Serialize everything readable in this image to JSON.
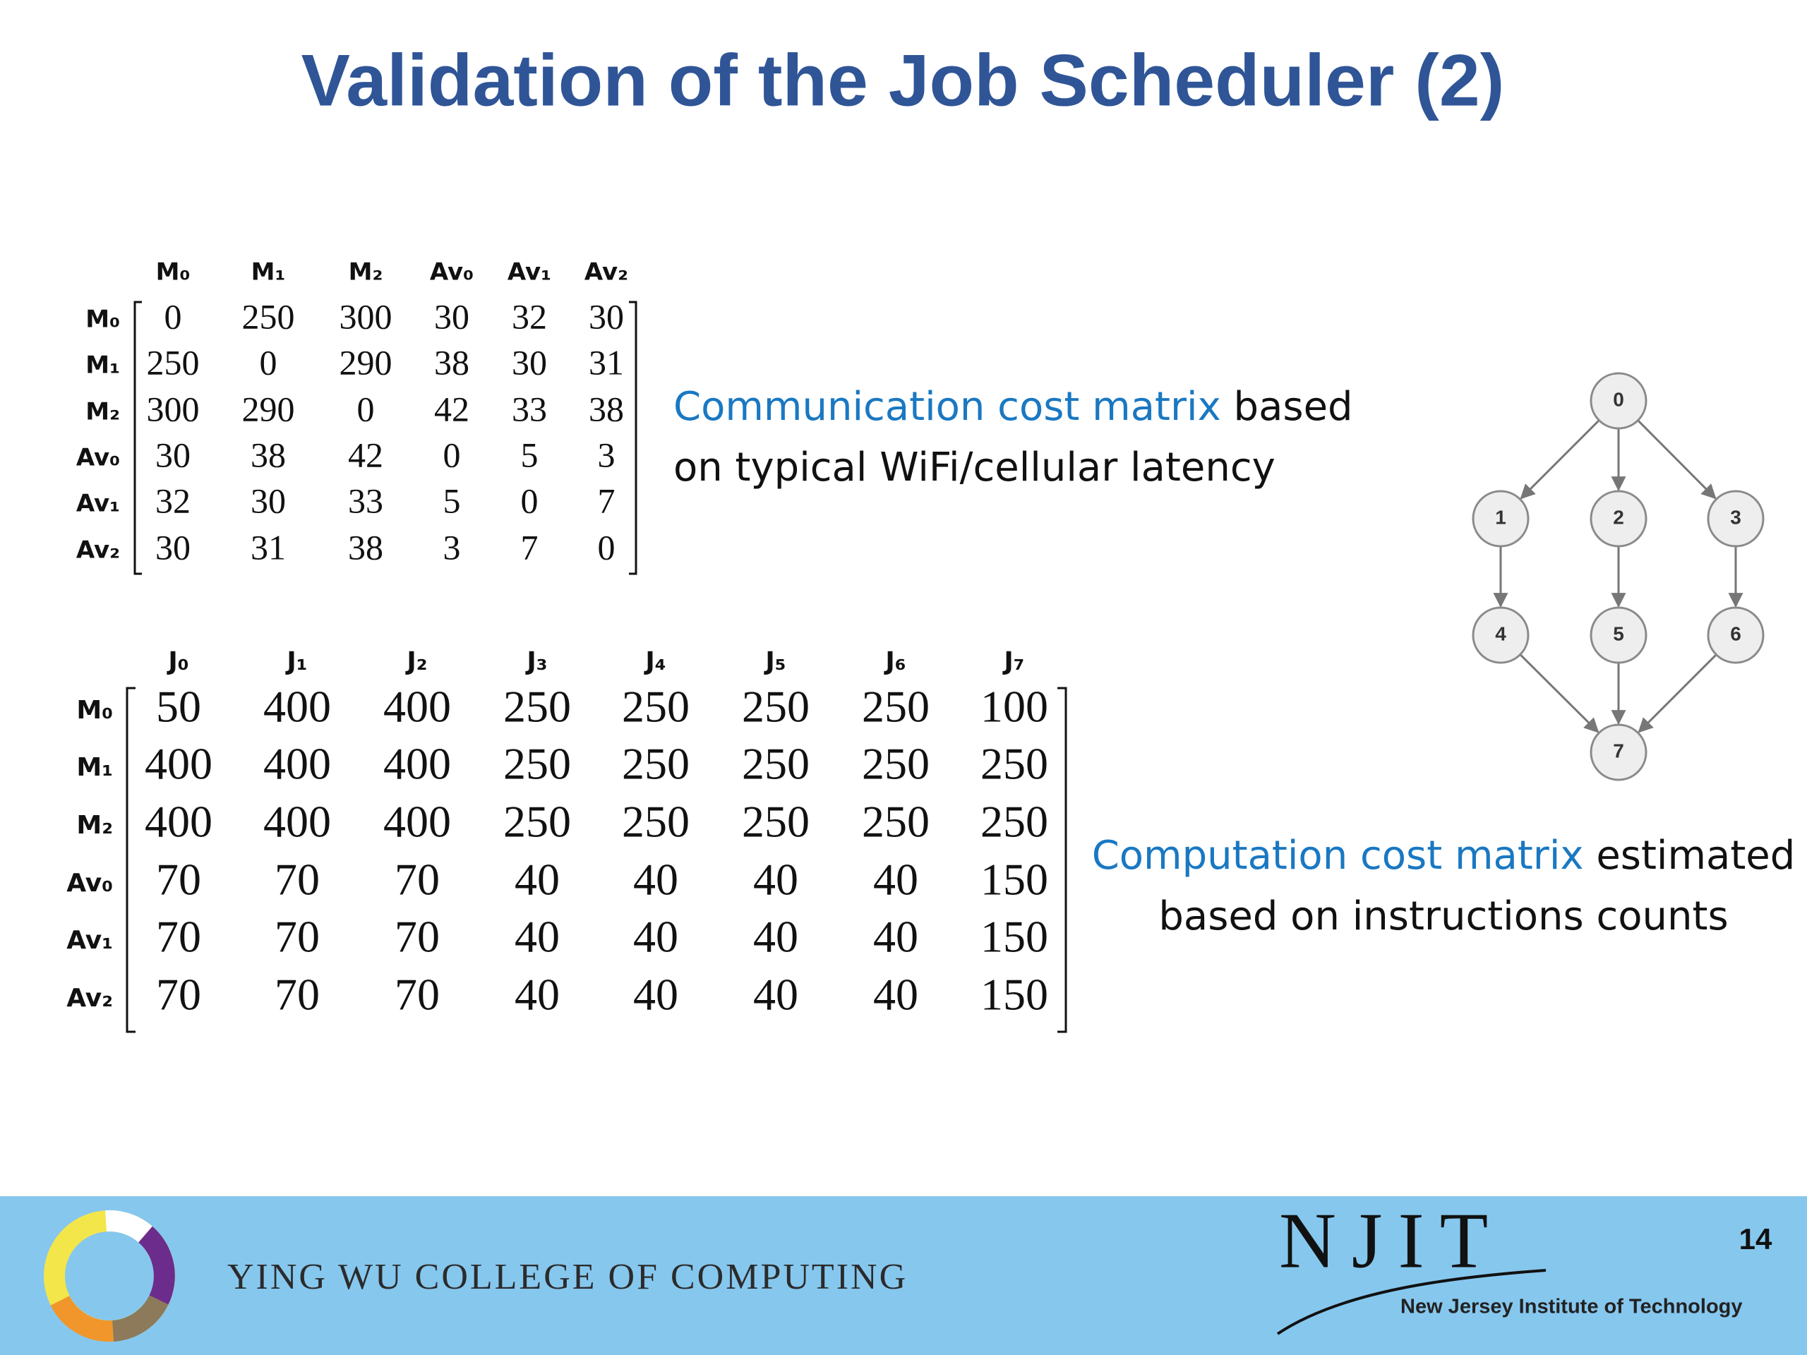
{
  "title": "Validation of the Job Scheduler (2)",
  "communication_matrix": {
    "columns": [
      "M₀",
      "M₁",
      "M₂",
      "Av₀",
      "Av₁",
      "Av₂"
    ],
    "rows": [
      {
        "label": "M₀",
        "values": [
          0,
          250,
          300,
          30,
          32,
          30
        ]
      },
      {
        "label": "M₁",
        "values": [
          250,
          0,
          290,
          38,
          30,
          31
        ]
      },
      {
        "label": "M₂",
        "values": [
          300,
          290,
          0,
          42,
          33,
          38
        ]
      },
      {
        "label": "Av₀",
        "values": [
          30,
          38,
          42,
          0,
          5,
          3
        ]
      },
      {
        "label": "Av₁",
        "values": [
          32,
          30,
          33,
          5,
          0,
          7
        ]
      },
      {
        "label": "Av₂",
        "values": [
          30,
          31,
          38,
          3,
          7,
          0
        ]
      }
    ]
  },
  "communication_caption": {
    "highlight": "Communication cost matrix",
    "rest": "based",
    "line2": "on typical WiFi/cellular latency"
  },
  "computation_matrix": {
    "columns": [
      "J₀",
      "J₁",
      "J₂",
      "J₃",
      "J₄",
      "J₅",
      "J₆",
      "J₇"
    ],
    "rows": [
      {
        "label": "M₀",
        "values": [
          50,
          400,
          400,
          250,
          250,
          250,
          250,
          100
        ]
      },
      {
        "label": "M₁",
        "values": [
          400,
          400,
          400,
          250,
          250,
          250,
          250,
          250
        ]
      },
      {
        "label": "M₂",
        "values": [
          400,
          400,
          400,
          250,
          250,
          250,
          250,
          250
        ]
      },
      {
        "label": "Av₀",
        "values": [
          70,
          70,
          70,
          40,
          40,
          40,
          40,
          150
        ]
      },
      {
        "label": "Av₁",
        "values": [
          70,
          70,
          70,
          40,
          40,
          40,
          40,
          150
        ]
      },
      {
        "label": "Av₂",
        "values": [
          70,
          70,
          70,
          40,
          40,
          40,
          40,
          150
        ]
      }
    ]
  },
  "computation_caption": {
    "highlight": "Computation cost matrix",
    "rest": "estimated",
    "line2": "based on instructions counts"
  },
  "graph": {
    "nodes": [
      "0",
      "1",
      "2",
      "3",
      "4",
      "5",
      "6",
      "7"
    ]
  },
  "footer": {
    "college": "YING WU COLLEGE OF COMPUTING",
    "logo_text": "NJIT",
    "institute": "New Jersey Institute of Technology",
    "page_number": "14"
  }
}
